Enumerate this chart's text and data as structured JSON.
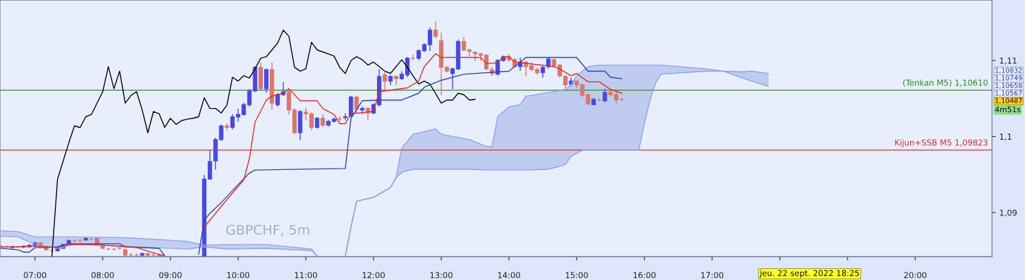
{
  "chart_data": {
    "type": "candlestick",
    "xlim": [
      "2022-09-22T06:29",
      "2022-09-22T21:08"
    ],
    "ylim": [
      1.08421,
      1.11796
    ],
    "xticks": [
      {
        "value": "2022-09-22T07:00",
        "label": "07:00"
      },
      {
        "value": "2022-09-22T08:00",
        "label": "08:00"
      },
      {
        "value": "2022-09-22T09:00",
        "label": "09:00"
      },
      {
        "value": "2022-09-22T10:00",
        "label": "10:00"
      },
      {
        "value": "2022-09-22T11:00",
        "label": "11:00"
      },
      {
        "value": "2022-09-22T12:00",
        "label": "12:00"
      },
      {
        "value": "2022-09-22T13:00",
        "label": "13:00"
      },
      {
        "value": "2022-09-22T14:00",
        "label": "14:00"
      },
      {
        "value": "2022-09-22T15:00",
        "label": "15:00"
      },
      {
        "value": "2022-09-22T16:00",
        "label": "16:00"
      },
      {
        "value": "2022-09-22T17:00",
        "label": "17:00"
      },
      {
        "value": "2022-09-22T18:00",
        "label": null
      },
      {
        "value": "2022-09-22T19:00",
        "label": null
      },
      {
        "value": "2022-09-22T20:00",
        "label": "20:00"
      }
    ],
    "yticks": [
      {
        "value": 1.09,
        "label": "1,09"
      },
      {
        "value": 1.1,
        "label": "1,1"
      },
      {
        "value": 1.11,
        "label": "1,11"
      }
    ],
    "series": [
      {
        "type": "line",
        "color": "#93a6e4",
        "x": [
          "2022-09-22T06:30",
          "2022-09-22T06:45",
          "2022-09-22T07:00",
          "2022-09-22T07:20",
          "2022-09-22T07:35",
          "2022-09-22T08:20",
          "2022-09-22T08:45",
          "2022-09-22T09:15",
          "2022-09-22T09:30",
          "2022-09-22T09:50",
          "2022-09-22T10:25",
          "2022-09-22T11:05",
          "2022-09-22T11:10"
        ],
        "values": [
          1.0876,
          1.0875,
          1.0868,
          1.0868,
          1.0868,
          1.0867,
          1.0865,
          1.0862,
          1.0857,
          1.0858,
          1.0858,
          1.0852,
          1.0843
        ],
        "upper": [
          1.0876,
          1.0875,
          1.0868,
          1.0868,
          1.0868,
          1.0867,
          1.0865,
          1.0862,
          1.0857,
          1.0858,
          1.0858,
          1.0852,
          1.0843
        ],
        "lower": [
          1.0869,
          1.0868,
          1.0858,
          1.0853,
          1.0858,
          1.0856,
          1.0854,
          1.0852,
          1.0855,
          1.0852,
          1.0853,
          1.085,
          1.0843
        ]
      },
      {
        "type": "line",
        "color": "#93a6e4",
        "x": [
          "2022-09-22T06:30",
          "2022-09-22T06:45",
          "2022-09-22T07:00",
          "2022-09-22T07:20",
          "2022-09-22T07:35",
          "2022-09-22T08:20",
          "2022-09-22T08:45",
          "2022-09-22T09:15",
          "2022-09-22T09:30",
          "2022-09-22T09:50",
          "2022-09-22T10:25",
          "2022-09-22T11:05",
          "2022-09-22T11:10"
        ],
        "values": [
          1.0869,
          1.0868,
          1.0858,
          1.0853,
          1.0858,
          1.0856,
          1.0854,
          1.0852,
          1.0855,
          1.0852,
          1.0853,
          1.085,
          1.0843
        ]
      },
      {
        "type": "line",
        "color": "#8ea2e2",
        "x": [
          "2022-09-22T11:35",
          "2022-09-22T11:40",
          "2022-09-22T11:45",
          "2022-09-22T12:00",
          "2022-09-22T12:15",
          "2022-09-22T12:20",
          "2022-09-22T12:25",
          "2022-09-22T12:35",
          "2022-09-22T12:55",
          "2022-09-22T13:00",
          "2022-09-22T13:25",
          "2022-09-22T13:40",
          "2022-09-22T13:45",
          "2022-09-22T13:50",
          "2022-09-22T14:00",
          "2022-09-22T14:10",
          "2022-09-22T14:15",
          "2022-09-22T14:35",
          "2022-09-22T14:50",
          "2022-09-22T14:55",
          "2022-09-22T15:00",
          "2022-09-22T15:05",
          "2022-09-22T15:10",
          "2022-09-22T15:20",
          "2022-09-22T15:50",
          "2022-09-22T15:55",
          "2022-09-22T16:00",
          "2022-09-22T16:05",
          "2022-09-22T16:10",
          "2022-09-22T16:15",
          "2022-09-22T16:55",
          "2022-09-22T17:10",
          "2022-09-22T17:25",
          "2022-09-22T17:35",
          "2022-09-22T17:50"
        ],
        "values": [
          1.0843,
          1.0881,
          1.0915,
          1.092,
          1.0933,
          1.0946,
          1.0953,
          1.0957,
          1.0957,
          1.0957,
          1.0957,
          1.0956,
          1.0956,
          1.0956,
          1.0956,
          1.0956,
          1.0956,
          1.0957,
          1.0963,
          1.0974,
          1.0978,
          1.0982,
          1.0982,
          1.0982,
          1.0982,
          1.0982,
          1.1017,
          1.1048,
          1.1071,
          1.1082,
          1.1086,
          1.1086,
          1.1078,
          1.1073,
          1.1066
        ]
      },
      {
        "type": "line",
        "color": "#8ea2e2",
        "x": [
          "2022-09-22T11:35",
          "2022-09-22T11:40",
          "2022-09-22T11:45",
          "2022-09-22T12:00",
          "2022-09-22T12:15",
          "2022-09-22T12:20",
          "2022-09-22T12:25",
          "2022-09-22T12:35",
          "2022-09-22T12:55",
          "2022-09-22T13:00",
          "2022-09-22T13:25",
          "2022-09-22T13:40",
          "2022-09-22T13:45",
          "2022-09-22T13:50",
          "2022-09-22T14:00",
          "2022-09-22T14:10",
          "2022-09-22T14:15",
          "2022-09-22T14:35",
          "2022-09-22T14:50",
          "2022-09-22T14:55",
          "2022-09-22T15:00",
          "2022-09-22T15:05",
          "2022-09-22T15:10",
          "2022-09-22T15:20",
          "2022-09-22T15:50",
          "2022-09-22T15:55",
          "2022-09-22T16:00",
          "2022-09-22T16:05",
          "2022-09-22T16:10",
          "2022-09-22T16:15",
          "2022-09-22T16:55",
          "2022-09-22T17:10",
          "2022-09-22T17:25",
          "2022-09-22T17:35",
          "2022-09-22T17:50"
        ],
        "values": [
          1.0843,
          1.0881,
          1.0915,
          1.092,
          1.0933,
          1.0946,
          1.0985,
          1.1003,
          1.101,
          1.1003,
          1.0996,
          1.0987,
          1.0987,
          1.1026,
          1.1039,
          1.1042,
          1.1053,
          1.1058,
          1.1062,
          1.1068,
          1.108,
          1.1086,
          1.1092,
          1.1094,
          1.1094,
          1.1094,
          1.1094,
          1.1094,
          1.1094,
          1.1094,
          1.1089,
          1.1086,
          1.1085,
          1.1086,
          1.1083
        ],
        "upper": [
          1.0843,
          1.0881,
          1.0915,
          1.092,
          1.0933,
          1.0946,
          1.0985,
          1.1003,
          1.101,
          1.1003,
          1.0996,
          1.0987,
          1.0987,
          1.1026,
          1.1039,
          1.1042,
          1.1053,
          1.1058,
          1.1062,
          1.1068,
          1.108,
          1.1086,
          1.1092,
          1.1094,
          1.1094,
          1.1094,
          1.1094,
          1.1094,
          1.1094,
          1.1094,
          1.1089,
          1.1086,
          1.1085,
          1.1086,
          1.1083
        ],
        "lower": [
          1.0843,
          1.0881,
          1.0915,
          1.092,
          1.0933,
          1.0946,
          1.0953,
          1.0957,
          1.0957,
          1.0957,
          1.0957,
          1.0956,
          1.0956,
          1.0956,
          1.0956,
          1.0956,
          1.0956,
          1.0957,
          1.0963,
          1.0974,
          1.0978,
          1.0982,
          1.0982,
          1.0982,
          1.0982,
          1.0982,
          1.1017,
          1.1048,
          1.1071,
          1.1082,
          1.1086,
          1.1086,
          1.1078,
          1.1073,
          1.1066
        ]
      },
      {
        "type": "line",
        "color": "#000000",
        "x": [
          "2022-09-22T07:15",
          "2022-09-22T07:20",
          "2022-09-22T07:30",
          "2022-09-22T07:35",
          "2022-09-22T07:40",
          "2022-09-22T07:45",
          "2022-09-22T07:50",
          "2022-09-22T08:00",
          "2022-09-22T08:05",
          "2022-09-22T08:10",
          "2022-09-22T08:15",
          "2022-09-22T08:20",
          "2022-09-22T08:25",
          "2022-09-22T08:30",
          "2022-09-22T08:35",
          "2022-09-22T08:40",
          "2022-09-22T08:45",
          "2022-09-22T08:50",
          "2022-09-22T08:55",
          "2022-09-22T09:00",
          "2022-09-22T09:05",
          "2022-09-22T09:10",
          "2022-09-22T09:15",
          "2022-09-22T09:20",
          "2022-09-22T09:25",
          "2022-09-22T09:30",
          "2022-09-22T09:35",
          "2022-09-22T09:40",
          "2022-09-22T09:45",
          "2022-09-22T09:50",
          "2022-09-22T09:55",
          "2022-09-22T10:00",
          "2022-09-22T10:05",
          "2022-09-22T10:10",
          "2022-09-22T10:15",
          "2022-09-22T10:20",
          "2022-09-22T10:25",
          "2022-09-22T10:30",
          "2022-09-22T10:35",
          "2022-09-22T10:40",
          "2022-09-22T10:45",
          "2022-09-22T10:50",
          "2022-09-22T10:55",
          "2022-09-22T11:00",
          "2022-09-22T11:05",
          "2022-09-22T11:10",
          "2022-09-22T11:25",
          "2022-09-22T11:30",
          "2022-09-22T11:35",
          "2022-09-22T11:40",
          "2022-09-22T11:45",
          "2022-09-22T11:50",
          "2022-09-22T11:55",
          "2022-09-22T12:00",
          "2022-09-22T12:05",
          "2022-09-22T12:10",
          "2022-09-22T12:15",
          "2022-09-22T12:25",
          "2022-09-22T12:30",
          "2022-09-22T12:35",
          "2022-09-22T12:40",
          "2022-09-22T12:45",
          "2022-09-22T12:50",
          "2022-09-22T13:00",
          "2022-09-22T13:05",
          "2022-09-22T13:10",
          "2022-09-22T13:15",
          "2022-09-22T13:20",
          "2022-09-22T13:25",
          "2022-09-22T13:30"
        ],
        "values": [
          1.0843,
          1.0944,
          1.0992,
          1.1014,
          1.1012,
          1.1026,
          1.1029,
          1.1059,
          1.1092,
          1.1063,
          1.1086,
          1.1044,
          1.1054,
          1.1059,
          1.1035,
          1.1005,
          1.1033,
          1.103,
          1.1012,
          1.1024,
          1.1016,
          1.1021,
          1.1023,
          1.1024,
          1.1026,
          1.1051,
          1.1037,
          1.1037,
          1.1031,
          1.1041,
          1.1078,
          1.1073,
          1.108,
          1.1077,
          1.1089,
          1.1103,
          1.1105,
          1.1114,
          1.1123,
          1.114,
          1.1132,
          1.1091,
          1.1086,
          1.1089,
          1.1124,
          1.1114,
          1.1106,
          1.1091,
          1.1083,
          1.11,
          1.1105,
          1.1101,
          1.1094,
          1.1098,
          1.1092,
          1.1086,
          1.1083,
          1.1101,
          1.1091,
          1.108,
          1.1069,
          1.1073,
          1.1069,
          1.1044,
          1.1048,
          1.1048,
          1.1057,
          1.1055,
          1.1048,
          1.1049
        ]
      },
      {
        "type": "line",
        "color": "#2a44a8",
        "x": [
          "2022-09-22T06:30",
          "2022-09-22T06:45",
          "2022-09-22T06:50",
          "2022-09-22T06:55",
          "2022-09-22T07:00",
          "2022-09-22T07:10",
          "2022-09-22T07:20",
          "2022-09-22T07:25",
          "2022-09-22T07:30",
          "2022-09-22T08:15",
          "2022-09-22T08:20",
          "2022-09-22T08:50",
          "2022-09-22T08:55",
          "2022-09-22T09:00",
          "2022-09-22T09:25",
          "2022-09-22T09:30",
          "2022-09-22T09:35",
          "2022-09-22T09:45",
          "2022-09-22T10:00",
          "2022-09-22T10:10",
          "2022-09-22T10:15",
          "2022-09-22T11:35",
          "2022-09-22T11:40",
          "2022-09-22T11:50",
          "2022-09-22T12:05",
          "2022-09-22T12:25",
          "2022-09-22T12:40",
          "2022-09-22T12:45",
          "2022-09-22T13:00",
          "2022-09-22T13:20",
          "2022-09-22T14:00",
          "2022-09-22T14:15",
          "2022-09-22T15:00",
          "2022-09-22T15:10",
          "2022-09-22T15:25",
          "2022-09-22T15:30",
          "2022-09-22T15:40"
        ],
        "values": [
          1.0853,
          1.0851,
          1.0848,
          1.0848,
          1.0854,
          1.0854,
          1.0855,
          1.0857,
          1.0859,
          1.0859,
          1.0855,
          1.0853,
          1.0843,
          null,
          1.0845,
          1.089,
          1.0899,
          1.0913,
          1.0937,
          1.0952,
          1.0956,
          1.0958,
          1.1024,
          1.1047,
          1.1048,
          1.1048,
          1.1057,
          1.1065,
          1.1074,
          1.1082,
          1.1086,
          1.1104,
          1.1104,
          1.1086,
          1.1086,
          1.1078,
          1.1076
        ]
      },
      {
        "type": "line",
        "color": "#e02a2a",
        "x": [
          "2022-09-22T06:30",
          "2022-09-22T06:50",
          "2022-09-22T07:00",
          "2022-09-22T07:20",
          "2022-09-22T07:30",
          "2022-09-22T07:55",
          "2022-09-22T08:20",
          "2022-09-22T08:30",
          "2022-09-22T08:50",
          "2022-09-22T08:55",
          "2022-09-22T09:00",
          "2022-09-22T09:30",
          "2022-09-22T09:50",
          "2022-09-22T10:05",
          "2022-09-22T10:10",
          "2022-09-22T10:15",
          "2022-09-22T10:25",
          "2022-09-22T10:30",
          "2022-09-22T10:40",
          "2022-09-22T10:45",
          "2022-09-22T10:55",
          "2022-09-22T11:10",
          "2022-09-22T11:15",
          "2022-09-22T11:25",
          "2022-09-22T11:30",
          "2022-09-22T11:35",
          "2022-09-22T11:40",
          "2022-09-22T12:00",
          "2022-09-22T12:05",
          "2022-09-22T12:30",
          "2022-09-22T12:40",
          "2022-09-22T12:45",
          "2022-09-22T12:55",
          "2022-09-22T13:00",
          "2022-09-22T13:35",
          "2022-09-22T13:40",
          "2022-09-22T13:50",
          "2022-09-22T13:55",
          "2022-09-22T14:00",
          "2022-09-22T14:05",
          "2022-09-22T14:40",
          "2022-09-22T14:45",
          "2022-09-22T14:55",
          "2022-09-22T15:00",
          "2022-09-22T15:10",
          "2022-09-22T15:20",
          "2022-09-22T15:30",
          "2022-09-22T15:40"
        ],
        "values": [
          1.0855,
          1.0855,
          1.0856,
          1.0854,
          1.0858,
          1.0858,
          1.0855,
          1.0854,
          1.0845,
          1.0843,
          null,
          1.0881,
          1.0917,
          1.0943,
          1.0971,
          1.1019,
          1.1048,
          1.1053,
          1.1057,
          1.1063,
          1.1047,
          1.1047,
          1.1037,
          1.1029,
          1.1017,
          1.1017,
          1.103,
          1.1033,
          1.1059,
          1.1064,
          1.1073,
          1.1092,
          1.1109,
          1.1104,
          1.1104,
          1.1096,
          1.1097,
          1.1105,
          1.1105,
          1.1098,
          1.1092,
          1.1089,
          1.108,
          1.1083,
          1.1072,
          1.1072,
          1.1062,
          1.1057
        ]
      },
      {
        "x": [
          "2022-09-22T06:30",
          "2022-09-22T06:35",
          "2022-09-22T06:40",
          "2022-09-22T06:45",
          "2022-09-22T06:50",
          "2022-09-22T06:55",
          "2022-09-22T07:00",
          "2022-09-22T07:05",
          "2022-09-22T07:10",
          "2022-09-22T07:15",
          "2022-09-22T07:20",
          "2022-09-22T07:25",
          "2022-09-22T07:30",
          "2022-09-22T07:35",
          "2022-09-22T07:40",
          "2022-09-22T07:45",
          "2022-09-22T07:50",
          "2022-09-22T07:55",
          "2022-09-22T08:00",
          "2022-09-22T08:05",
          "2022-09-22T08:10",
          "2022-09-22T08:15",
          "2022-09-22T08:20",
          "2022-09-22T08:25",
          "2022-09-22T08:30",
          "2022-09-22T08:35",
          "2022-09-22T08:40",
          "2022-09-22T08:45",
          "2022-09-22T08:50",
          "2022-09-22T09:30",
          "2022-09-22T09:35",
          "2022-09-22T09:40",
          "2022-09-22T09:45",
          "2022-09-22T09:50",
          "2022-09-22T09:55",
          "2022-09-22T10:00",
          "2022-09-22T10:05",
          "2022-09-22T10:10",
          "2022-09-22T10:15",
          "2022-09-22T10:20",
          "2022-09-22T10:25",
          "2022-09-22T10:30",
          "2022-09-22T10:35",
          "2022-09-22T10:40",
          "2022-09-22T10:45",
          "2022-09-22T10:50",
          "2022-09-22T10:55",
          "2022-09-22T11:00",
          "2022-09-22T11:05",
          "2022-09-22T11:10",
          "2022-09-22T11:15",
          "2022-09-22T11:20",
          "2022-09-22T11:25",
          "2022-09-22T11:30",
          "2022-09-22T11:35",
          "2022-09-22T11:40",
          "2022-09-22T11:45",
          "2022-09-22T11:50",
          "2022-09-22T11:55",
          "2022-09-22T12:00",
          "2022-09-22T12:05",
          "2022-09-22T12:10",
          "2022-09-22T12:15",
          "2022-09-22T12:20",
          "2022-09-22T12:25",
          "2022-09-22T12:30",
          "2022-09-22T12:35",
          "2022-09-22T12:40",
          "2022-09-22T12:45",
          "2022-09-22T12:50",
          "2022-09-22T12:55",
          "2022-09-22T13:00",
          "2022-09-22T13:05",
          "2022-09-22T13:10",
          "2022-09-22T13:15",
          "2022-09-22T13:20",
          "2022-09-22T13:25",
          "2022-09-22T13:30",
          "2022-09-22T13:35",
          "2022-09-22T13:40",
          "2022-09-22T13:45",
          "2022-09-22T13:50",
          "2022-09-22T13:55",
          "2022-09-22T14:00",
          "2022-09-22T14:05",
          "2022-09-22T14:10",
          "2022-09-22T14:15",
          "2022-09-22T14:20",
          "2022-09-22T14:25",
          "2022-09-22T14:30",
          "2022-09-22T14:35",
          "2022-09-22T14:40",
          "2022-09-22T14:45",
          "2022-09-22T14:50",
          "2022-09-22T14:55",
          "2022-09-22T15:00",
          "2022-09-22T15:05",
          "2022-09-22T15:10",
          "2022-09-22T15:15",
          "2022-09-22T15:20",
          "2022-09-22T15:25",
          "2022-09-22T15:30",
          "2022-09-22T15:35",
          "2022-09-22T15:40"
        ],
        "ohlc": [
          [
            1.0855,
            1.0857,
            1.0853,
            1.0855
          ],
          [
            1.0855,
            1.0856,
            1.0854,
            1.0855
          ],
          [
            1.0854,
            1.0856,
            1.0853,
            1.0855
          ],
          [
            1.0855,
            1.0856,
            1.0854,
            1.0855
          ],
          [
            1.0855,
            1.0856,
            1.0854,
            1.0856
          ],
          [
            1.0855,
            1.0858,
            1.0854,
            1.0857
          ],
          [
            1.0856,
            1.0861,
            1.0856,
            1.086
          ],
          [
            1.086,
            1.0861,
            1.0855,
            1.0855
          ],
          [
            1.0854,
            1.0855,
            1.0851,
            1.0851
          ],
          [
            1.085,
            1.0852,
            1.0848,
            1.085
          ],
          [
            1.085,
            1.0853,
            1.0849,
            1.0853
          ],
          [
            1.0853,
            1.0858,
            1.0853,
            1.0858
          ],
          [
            1.0858,
            1.0864,
            1.0858,
            1.0863
          ],
          [
            1.0863,
            1.0864,
            1.0862,
            1.0863
          ],
          [
            1.0863,
            1.0865,
            1.0862,
            1.0863
          ],
          [
            1.0864,
            1.0867,
            1.0864,
            1.0866
          ],
          [
            1.0865,
            1.0866,
            1.0864,
            1.0865
          ],
          [
            1.0866,
            1.0867,
            1.0857,
            1.0857
          ],
          [
            1.0856,
            1.0858,
            1.0853,
            1.0853
          ],
          [
            1.0852,
            1.0853,
            1.0851,
            1.0852
          ],
          [
            1.0852,
            1.0853,
            1.0851,
            1.0852
          ],
          [
            1.0853,
            1.0854,
            1.0852,
            1.0853
          ],
          [
            1.0851,
            1.0852,
            1.0843,
            1.0844
          ],
          [
            1.0844,
            1.0846,
            1.0844,
            1.0844
          ],
          [
            1.0844,
            1.0846,
            1.0844,
            1.0844
          ],
          [
            1.0844,
            1.0847,
            1.0843,
            1.0846
          ],
          [
            1.0846,
            1.0847,
            1.0843,
            1.0844
          ],
          [
            1.0844,
            1.0846,
            1.0844,
            1.0844
          ],
          [
            1.0844,
            1.0845,
            1.0843,
            1.0843
          ],
          [
            1.0843,
            1.0949,
            1.0843,
            1.0944
          ],
          [
            1.0944,
            1.0982,
            1.0944,
            1.0967
          ],
          [
            1.0968,
            1.0998,
            1.0957,
            1.0996
          ],
          [
            1.0996,
            1.1015,
            1.0995,
            1.1014
          ],
          [
            1.1014,
            1.1017,
            1.1009,
            1.1012
          ],
          [
            1.1012,
            1.1029,
            1.101,
            1.1026
          ],
          [
            1.1026,
            1.1036,
            1.102,
            1.1029
          ],
          [
            1.1029,
            1.1044,
            1.1028,
            1.1042
          ],
          [
            1.1042,
            1.1062,
            1.104,
            1.106
          ],
          [
            1.106,
            1.1092,
            1.1059,
            1.1091
          ],
          [
            1.1091,
            1.1097,
            1.1062,
            1.1063
          ],
          [
            1.1063,
            1.1089,
            1.1058,
            1.1088
          ],
          [
            1.1088,
            1.1097,
            1.1036,
            1.1044
          ],
          [
            1.1042,
            1.1057,
            1.104,
            1.1055
          ],
          [
            1.1055,
            1.1071,
            1.1054,
            1.1059
          ],
          [
            1.1059,
            1.1061,
            1.103,
            1.1035
          ],
          [
            1.1035,
            1.1036,
            1.1004,
            1.1005
          ],
          [
            1.1005,
            1.1034,
            1.0996,
            1.1033
          ],
          [
            1.1032,
            1.1037,
            1.1022,
            1.103
          ],
          [
            1.103,
            1.1031,
            1.1009,
            1.1012
          ],
          [
            1.1012,
            1.1025,
            1.1011,
            1.1024
          ],
          [
            1.1024,
            1.1029,
            1.1013,
            1.1015
          ],
          [
            1.1015,
            1.1021,
            1.1014,
            1.102
          ],
          [
            1.102,
            1.1024,
            1.1019,
            1.1023
          ],
          [
            1.1023,
            1.1026,
            1.102,
            1.1023
          ],
          [
            1.1025,
            1.103,
            1.1022,
            1.1026
          ],
          [
            1.1027,
            1.1053,
            1.1026,
            1.1052
          ],
          [
            1.1052,
            1.1053,
            1.103,
            1.1036
          ],
          [
            1.1035,
            1.1039,
            1.103,
            1.1037
          ],
          [
            1.1037,
            1.1038,
            1.1022,
            1.1031
          ],
          [
            1.1031,
            1.1043,
            1.103,
            1.1042
          ],
          [
            1.1042,
            1.1088,
            1.104,
            1.1079
          ],
          [
            1.1081,
            1.1084,
            1.1062,
            1.1073
          ],
          [
            1.1073,
            1.108,
            1.1068,
            1.1079
          ],
          [
            1.1079,
            1.108,
            1.1068,
            1.1076
          ],
          [
            1.1076,
            1.1085,
            1.1075,
            1.1082
          ],
          [
            1.1081,
            1.1104,
            1.1079,
            1.1103
          ],
          [
            1.1103,
            1.1107,
            1.1101,
            1.1103
          ],
          [
            1.1103,
            1.1114,
            1.1101,
            1.1113
          ],
          [
            1.1113,
            1.1122,
            1.1112,
            1.1121
          ],
          [
            1.1121,
            1.1143,
            1.1113,
            1.114
          ],
          [
            1.114,
            1.1151,
            1.113,
            1.1132
          ],
          [
            1.1126,
            1.1136,
            1.1055,
            1.1091
          ],
          [
            1.1091,
            1.1092,
            1.1085,
            1.1086
          ],
          [
            1.1083,
            1.109,
            1.1063,
            1.1089
          ],
          [
            1.1089,
            1.1127,
            1.1088,
            1.1125
          ],
          [
            1.1125,
            1.113,
            1.1113,
            1.1114
          ],
          [
            1.1114,
            1.1115,
            1.1106,
            1.1112
          ],
          [
            1.1111,
            1.1111,
            1.11,
            1.1109
          ],
          [
            1.1109,
            1.1109,
            1.11,
            1.1107
          ],
          [
            1.1107,
            1.1108,
            1.1088,
            1.1089
          ],
          [
            1.1088,
            1.1091,
            1.108,
            1.1083
          ],
          [
            1.1082,
            1.1101,
            1.1081,
            1.11
          ],
          [
            1.11,
            1.1106,
            1.1099,
            1.1105
          ],
          [
            1.1105,
            1.1108,
            1.1099,
            1.1101
          ],
          [
            1.1101,
            1.1103,
            1.1091,
            1.1092
          ],
          [
            1.1092,
            1.1103,
            1.1087,
            1.1098
          ],
          [
            1.1098,
            1.1099,
            1.108,
            1.1092
          ],
          [
            1.1093,
            1.1097,
            1.1087,
            1.1088
          ],
          [
            1.1088,
            1.109,
            1.1082,
            1.1084
          ],
          [
            1.1084,
            1.1092,
            1.1078,
            1.1091
          ],
          [
            1.1092,
            1.1103,
            1.109,
            1.1102
          ],
          [
            1.1101,
            1.1102,
            1.1092,
            1.1093
          ],
          [
            1.1094,
            1.1095,
            1.1079,
            1.108
          ],
          [
            1.1079,
            1.108,
            1.1064,
            1.1068
          ],
          [
            1.1069,
            1.1077,
            1.1067,
            1.1073
          ],
          [
            1.1073,
            1.1073,
            1.1064,
            1.1068
          ],
          [
            1.1068,
            1.1069,
            1.1053,
            1.1054
          ],
          [
            1.1055,
            1.1056,
            1.1042,
            1.1043
          ],
          [
            1.1042,
            1.105,
            1.1042,
            1.1049
          ],
          [
            1.1048,
            1.105,
            1.1047,
            1.1048
          ],
          [
            1.1047,
            1.1062,
            1.1046,
            1.1058
          ],
          [
            1.1058,
            1.106,
            1.1053,
            1.1055
          ],
          [
            1.1055,
            1.1058,
            1.1044,
            1.1048
          ],
          [
            1.10487,
            1.105,
            1.1047,
            1.10487
          ]
        ],
        "colors": [
          "#d8776f",
          "#d8776f",
          "#4a4ad6",
          "#d8776f",
          "#4a4ad6",
          "#4a4ad6",
          "#4a4ad6",
          "#d8776f",
          "#d8776f",
          "#d8776f",
          "#4a4ad6",
          "#4a4ad6",
          "#4a4ad6",
          "#d8776f",
          "#d8776f",
          "#4a4ad6",
          "#d8776f",
          "#d8776f",
          "#d8776f",
          "#d8776f",
          "#d8776f",
          "#d8776f",
          "#d8776f",
          "#d8776f",
          "#d8776f",
          "#4a4ad6",
          "#d8776f",
          "#d8776f",
          "#d8776f",
          "#4a4ad6",
          "#4a4ad6",
          "#4a4ad6",
          "#4a4ad6",
          "#d8776f",
          "#4a4ad6",
          "#4a4ad6",
          "#4a4ad6",
          "#4a4ad6",
          "#4a4ad6",
          "#d8776f",
          "#4a4ad6",
          "#d8776f",
          "#4a4ad6",
          "#4a4ad6",
          "#d8776f",
          "#d8776f",
          "#4a4ad6",
          "#d8776f",
          "#d8776f",
          "#4a4ad6",
          "#d8776f",
          "#4a4ad6",
          "#4a4ad6",
          "#d8776f",
          "#4a4ad6",
          "#4a4ad6",
          "#d8776f",
          "#4a4ad6",
          "#d8776f",
          "#4a4ad6",
          "#4a4ad6",
          "#d8776f",
          "#4a4ad6",
          "#d8776f",
          "#4a4ad6",
          "#4a4ad6",
          "#d8776f",
          "#4a4ad6",
          "#4a4ad6",
          "#4a4ad6",
          "#d8776f",
          "#d8776f",
          "#d8776f",
          "#4a4ad6",
          "#4a4ad6",
          "#d8776f",
          "#d8776f",
          "#d8776f",
          "#d8776f",
          "#d8776f",
          "#d8776f",
          "#4a4ad6",
          "#4a4ad6",
          "#d8776f",
          "#d8776f",
          "#4a4ad6",
          "#d8776f",
          "#d8776f",
          "#d8776f",
          "#4a4ad6",
          "#4a4ad6",
          "#d8776f",
          "#d8776f",
          "#d8776f",
          "#4a4ad6",
          "#d8776f",
          "#d8776f",
          "#d8776f",
          "#4a4ad6",
          "#d8776f",
          "#4a4ad6",
          "#d8776f",
          "#d8776f",
          "#d8776f"
        ]
      }
    ],
    "ref_lines": [
      {
        "axis": "y",
        "value": 1.1061,
        "label": "(Tenkan M5) 1,10610",
        "color": "#2a8a2a"
      },
      {
        "axis": "y",
        "value": 1.09823,
        "label": "Kijun+SSB M5 1,09823",
        "color": "#c83232"
      }
    ],
    "annotations": [
      "1,10832",
      "1,10749",
      "1,10658",
      "1,10567",
      "1,10487",
      "4m51s",
      "GBPCHF, 5m",
      "jeu. 22 sept. 2022 18:25"
    ]
  }
}
